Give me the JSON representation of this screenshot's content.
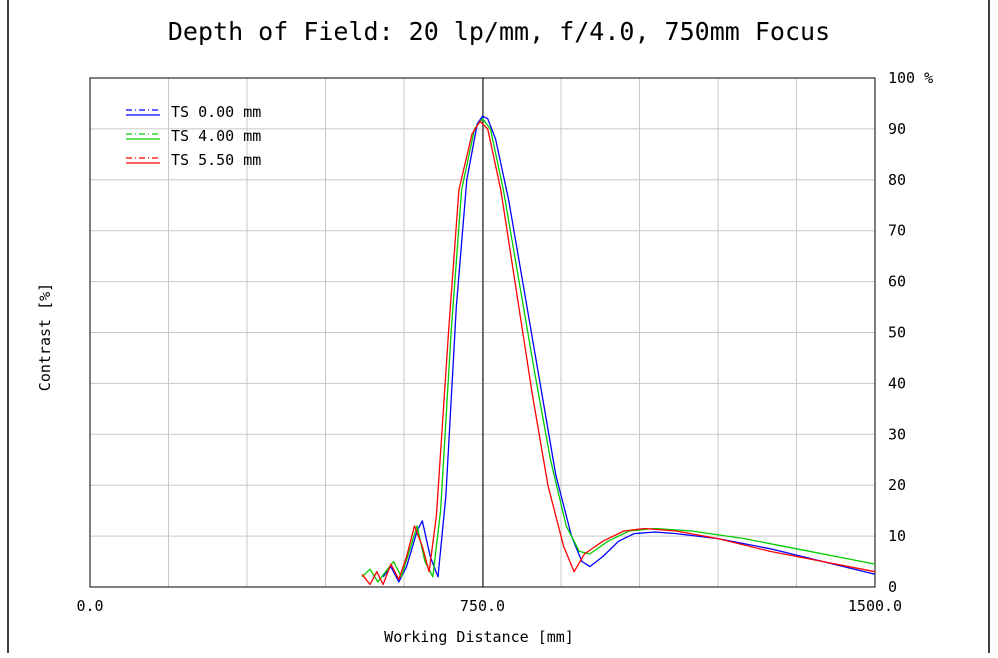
{
  "chart_data": {
    "type": "line",
    "title": "Depth of Field: 20 lp/mm, f/4.0, 750mm Focus",
    "xlabel": "Working Distance [mm]",
    "ylabel": "Contrast [%]",
    "xlim": [
      0,
      1500
    ],
    "ylim": [
      0,
      100
    ],
    "x_tick_labels": [
      "0.0",
      "750.0",
      "1500.0"
    ],
    "y_tick_labels": [
      "0",
      "10",
      "20",
      "30",
      "40",
      "50",
      "60",
      "70",
      "80",
      "90",
      "100 %"
    ],
    "grid": true,
    "legend_position": "top-left",
    "series": [
      {
        "name": "TS 0.00 mm",
        "color": "#0000ff",
        "points": [
          [
            560,
            2
          ],
          [
            575,
            4
          ],
          [
            590,
            1
          ],
          [
            605,
            4
          ],
          [
            625,
            11
          ],
          [
            635,
            13
          ],
          [
            650,
            6
          ],
          [
            665,
            2
          ],
          [
            680,
            18
          ],
          [
            700,
            55
          ],
          [
            720,
            80
          ],
          [
            740,
            91
          ],
          [
            750,
            92.5
          ],
          [
            760,
            92
          ],
          [
            775,
            88
          ],
          [
            800,
            76
          ],
          [
            830,
            58
          ],
          [
            860,
            40
          ],
          [
            890,
            22
          ],
          [
            920,
            10
          ],
          [
            940,
            5
          ],
          [
            955,
            4
          ],
          [
            980,
            6
          ],
          [
            1010,
            9
          ],
          [
            1040,
            10.5
          ],
          [
            1080,
            10.8
          ],
          [
            1120,
            10.5
          ],
          [
            1200,
            9.5
          ],
          [
            1300,
            7.5
          ],
          [
            1400,
            5
          ],
          [
            1500,
            2.5
          ]
        ]
      },
      {
        "name": "TS 4.00 mm",
        "color": "#00cc00",
        "points": [
          [
            520,
            2
          ],
          [
            535,
            3.5
          ],
          [
            550,
            1
          ],
          [
            565,
            3
          ],
          [
            580,
            5
          ],
          [
            595,
            2
          ],
          [
            610,
            7
          ],
          [
            625,
            12
          ],
          [
            640,
            5
          ],
          [
            655,
            2
          ],
          [
            670,
            15
          ],
          [
            690,
            50
          ],
          [
            710,
            78
          ],
          [
            735,
            90
          ],
          [
            750,
            92
          ],
          [
            765,
            90
          ],
          [
            790,
            78
          ],
          [
            820,
            60
          ],
          [
            850,
            42
          ],
          [
            880,
            25
          ],
          [
            910,
            12
          ],
          [
            935,
            7
          ],
          [
            955,
            6.5
          ],
          [
            990,
            9
          ],
          [
            1030,
            11
          ],
          [
            1080,
            11.5
          ],
          [
            1150,
            11
          ],
          [
            1250,
            9.5
          ],
          [
            1350,
            7.5
          ],
          [
            1450,
            5.5
          ],
          [
            1500,
            4.5
          ]
        ]
      },
      {
        "name": "TS 5.50 mm",
        "color": "#ff0000",
        "points": [
          [
            520,
            2.5
          ],
          [
            535,
            0.5
          ],
          [
            548,
            3
          ],
          [
            560,
            0.5
          ],
          [
            575,
            4.5
          ],
          [
            590,
            1.5
          ],
          [
            605,
            6
          ],
          [
            620,
            12
          ],
          [
            635,
            8
          ],
          [
            648,
            3
          ],
          [
            662,
            14
          ],
          [
            685,
            50
          ],
          [
            705,
            78
          ],
          [
            730,
            89
          ],
          [
            745,
            91.5
          ],
          [
            760,
            90
          ],
          [
            785,
            78
          ],
          [
            815,
            58
          ],
          [
            845,
            38
          ],
          [
            875,
            20
          ],
          [
            905,
            8
          ],
          [
            925,
            3
          ],
          [
            945,
            6.5
          ],
          [
            980,
            9
          ],
          [
            1020,
            11
          ],
          [
            1060,
            11.5
          ],
          [
            1120,
            11
          ],
          [
            1200,
            9.5
          ],
          [
            1300,
            7
          ],
          [
            1400,
            5
          ],
          [
            1500,
            3
          ]
        ]
      }
    ]
  }
}
